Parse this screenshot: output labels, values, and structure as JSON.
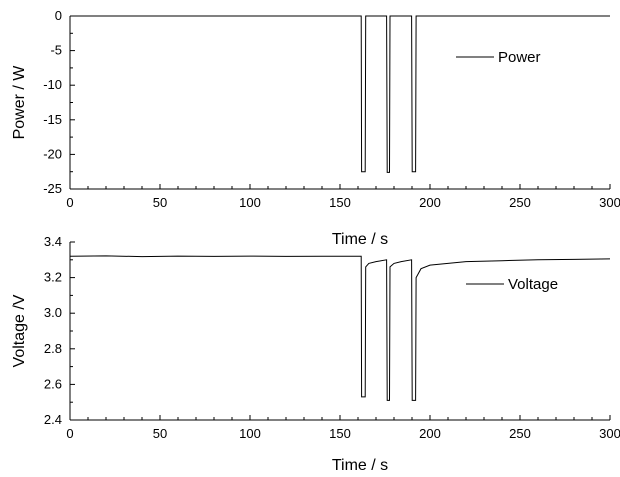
{
  "chart_data": [
    {
      "type": "line",
      "xlabel": "Time / s",
      "ylabel": "Power / W",
      "xlim": [
        0,
        300
      ],
      "ylim": [
        -25,
        0
      ],
      "xticks": [
        0,
        50,
        100,
        150,
        200,
        250,
        300
      ],
      "yticks": [
        0,
        -5,
        -10,
        -15,
        -20,
        -25
      ],
      "grid": false,
      "legend_position": "right",
      "series": [
        {
          "name": "Power",
          "x": [
            0,
            161.8,
            162,
            164,
            164.3,
            175.9,
            176.2,
            177.5,
            177.8,
            189.8,
            190.1,
            192,
            192.3,
            300
          ],
          "y": [
            0,
            0,
            -22.5,
            -22.5,
            0,
            0,
            -22.6,
            -22.6,
            0,
            0,
            -22.5,
            -22.5,
            0,
            0
          ]
        }
      ]
    },
    {
      "type": "line",
      "xlabel": "Time / s",
      "ylabel": "Voltage /V",
      "xlim": [
        0,
        300
      ],
      "ylim": [
        2.4,
        3.4
      ],
      "xticks": [
        0,
        50,
        100,
        150,
        200,
        250,
        300
      ],
      "yticks": [
        3.4,
        3.2,
        3.0,
        2.8,
        2.6,
        2.4
      ],
      "grid": false,
      "legend_position": "right",
      "series": [
        {
          "name": "Voltage",
          "x": [
            0,
            20,
            40,
            60,
            80,
            100,
            120,
            140,
            161.8,
            162,
            164,
            164.3,
            166,
            170,
            175.9,
            176.2,
            177.5,
            177.8,
            180,
            184,
            189.8,
            190.1,
            192,
            192.3,
            195,
            200,
            210,
            220,
            240,
            260,
            280,
            300
          ],
          "y": [
            3.32,
            3.322,
            3.318,
            3.321,
            3.319,
            3.321,
            3.319,
            3.32,
            3.32,
            2.53,
            2.53,
            3.26,
            3.28,
            3.29,
            3.3,
            2.51,
            2.51,
            3.26,
            3.28,
            3.29,
            3.3,
            2.51,
            2.51,
            3.2,
            3.25,
            3.27,
            3.28,
            3.29,
            3.295,
            3.3,
            3.302,
            3.305
          ]
        }
      ]
    }
  ]
}
